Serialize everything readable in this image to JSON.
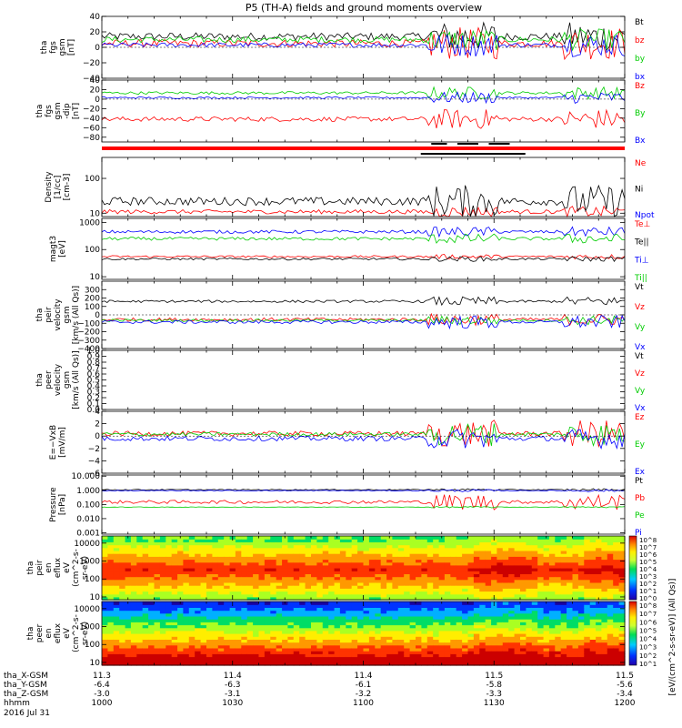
{
  "title": "P5 (TH-A) fields and ground moments overview",
  "date_label": "2016 Jul 31",
  "x_axis": {
    "tick_count": 7,
    "minor_ticks": 5,
    "row_labels": [
      "tha_X-GSM",
      "tha_Y-GSM",
      "tha_Z-GSM",
      "hhmm"
    ],
    "tick_values": [
      [
        "11.3",
        "11.4",
        "11.4",
        "11.5",
        "11.5"
      ],
      [
        "-6.4",
        "-6.3",
        "-6.1",
        "-5.8",
        "-5.6"
      ],
      [
        "-3.0",
        "-3.1",
        "-3.2",
        "-3.3",
        "-3.4"
      ],
      [
        "1000",
        "1030",
        "1100",
        "1130",
        "1200"
      ]
    ]
  },
  "colorbar": {
    "label": "[eV/(cm^2-s-sr-eV)] (All Qs)]",
    "spectrogram_1_ticks": [
      "10^8",
      "10^7",
      "10^6",
      "10^5",
      "10^4",
      "10^3",
      "10^2",
      "10^1",
      "10^0"
    ],
    "spectrogram_2_ticks": [
      "10^8",
      "10^7",
      "10^6",
      "10^5",
      "10^4",
      "10^3",
      "10^2",
      "10^1"
    ]
  },
  "chart_data": [
    {
      "type": "line",
      "panel_id": "fgs_gsm",
      "ylabel": [
        "tha",
        "fgs",
        "gsm",
        "[nT]"
      ],
      "ylim": [
        -40,
        40
      ],
      "yticks": [
        40,
        20,
        0,
        -20,
        -40
      ],
      "ytick_labels": [
        "40",
        "20",
        "0",
        "−20",
        "−40"
      ],
      "series": [
        {
          "name": "Bt",
          "color": "#000000",
          "base": 14,
          "noise": 5,
          "burst": 14
        },
        {
          "name": "bz",
          "color": "#ff0000",
          "base": 5,
          "noise": 5,
          "burst": 16
        },
        {
          "name": "by",
          "color": "#00cc00",
          "base": 10,
          "noise": 4,
          "burst": 10
        },
        {
          "name": "bx",
          "color": "#0000ff",
          "base": 3,
          "noise": 3,
          "burst": 12
        }
      ]
    },
    {
      "type": "line",
      "panel_id": "fgs_gsm_dip",
      "ylabel": [
        "tha",
        "fgs",
        "gsm",
        "-dip",
        "[nT]"
      ],
      "ylim": [
        -90,
        40
      ],
      "yticks": [
        40,
        20,
        0,
        -20,
        -40,
        -60,
        -80
      ],
      "ytick_labels": [
        "40",
        "20",
        "0",
        "−20",
        "−40",
        "−60",
        "−80"
      ],
      "series": [
        {
          "name": "Bz",
          "color": "#ff0000",
          "base": -42,
          "noise": 5,
          "burst": 16
        },
        {
          "name": "By",
          "color": "#00cc00",
          "base": 13,
          "noise": 3,
          "burst": 10
        },
        {
          "name": "Bx",
          "color": "#0000ff",
          "base": 3,
          "noise": 2,
          "burst": 10
        }
      ]
    },
    {
      "type": "line",
      "panel_id": "density",
      "log": true,
      "ylabel": [
        "Density",
        "[1/cc]",
        "[cm-3]"
      ],
      "ylim": [
        8,
        400
      ],
      "yticks": [
        100,
        10
      ],
      "ytick_labels": [
        "100",
        "10"
      ],
      "series": [
        {
          "name": "Ne",
          "color": "#ff0000",
          "base": 11,
          "noise": 0.06,
          "burst": 0.1
        },
        {
          "name": "Ni",
          "color": "#000000",
          "base": 22,
          "noise": 0.12,
          "burst": 0.35
        },
        {
          "name": "Npot",
          "color": "#0000ff",
          "base": 0,
          "noise": 0,
          "burst": 0
        }
      ]
    },
    {
      "type": "line",
      "panel_id": "temperature",
      "log": true,
      "ylabel": [
        "magt3",
        "[eV]"
      ],
      "ylim": [
        8,
        1400
      ],
      "yticks": [
        1000,
        100,
        10
      ],
      "ytick_labels": [
        "1000",
        "100",
        "10"
      ],
      "series": [
        {
          "name": "Te⊥",
          "color": "#ff0000",
          "base": 55,
          "noise": 0.04,
          "burst": 0.05
        },
        {
          "name": "Te||",
          "color": "#000000",
          "base": 45,
          "noise": 0.04,
          "burst": 0.05
        },
        {
          "name": "Ti⊥",
          "color": "#0000ff",
          "base": 450,
          "noise": 0.06,
          "burst": 0.12
        },
        {
          "name": "Ti||",
          "color": "#00cc00",
          "base": 250,
          "noise": 0.06,
          "burst": 0.12
        }
      ]
    },
    {
      "type": "line",
      "panel_id": "peir_velocity",
      "ylabel": [
        "tha",
        "peir",
        "velocity",
        "gsm",
        "[km/s (All Qs)]"
      ],
      "ylim": [
        -400,
        400
      ],
      "yticks": [
        300,
        200,
        100,
        0,
        -100,
        -200,
        -300,
        -400
      ],
      "ytick_labels": [
        "300",
        "200",
        "100",
        "0",
        "−100",
        "−200",
        "−300",
        "−400"
      ],
      "series": [
        {
          "name": "Vt",
          "color": "#000000",
          "base": 160,
          "noise": 15,
          "burst": 40
        },
        {
          "name": "Vz",
          "color": "#ff0000",
          "base": -55,
          "noise": 20,
          "burst": 50
        },
        {
          "name": "Vy",
          "color": "#00cc00",
          "base": -65,
          "noise": 15,
          "burst": 40
        },
        {
          "name": "Vx",
          "color": "#0000ff",
          "base": -85,
          "noise": 20,
          "burst": 60
        }
      ]
    },
    {
      "type": "line",
      "panel_id": "peer_velocity",
      "ylabel": [
        "tha",
        "peer",
        "velocity",
        "gsm",
        "[km/s (All Qs)]"
      ],
      "ylim": [
        0,
        1
      ],
      "yticks": [
        1.0,
        0.9,
        0.8,
        0.7,
        0.6,
        0.5,
        0.4,
        0.3,
        0.2,
        0.1,
        0.0
      ],
      "ytick_labels": [
        "1.0",
        "0.9",
        "0.8",
        "0.7",
        "0.6",
        "0.5",
        "0.4",
        "0.3",
        "0.2",
        "0.1",
        "0.0"
      ],
      "series": [
        {
          "name": "Vt",
          "color": "#000000",
          "base": 0,
          "noise": 0,
          "burst": 0
        },
        {
          "name": "Vz",
          "color": "#ff0000",
          "base": 0,
          "noise": 0,
          "burst": 0
        },
        {
          "name": "Vy",
          "color": "#00cc00",
          "base": 0,
          "noise": 0,
          "burst": 0
        },
        {
          "name": "Vx",
          "color": "#0000ff",
          "base": 0,
          "noise": 0,
          "burst": 0
        }
      ]
    },
    {
      "type": "line",
      "panel_id": "efield",
      "ylabel": [
        "E=−VxB",
        "[mV/m]"
      ],
      "ylim": [
        -6,
        4
      ],
      "yticks": [
        4,
        2,
        0,
        -2,
        -4,
        -6
      ],
      "ytick_labels": [
        "4",
        "2",
        "0",
        "−2",
        "−4",
        "−6"
      ],
      "series": [
        {
          "name": "Ez",
          "color": "#ff0000",
          "base": 0.4,
          "noise": 0.4,
          "burst": 1.8
        },
        {
          "name": "Ey",
          "color": "#00cc00",
          "base": 0.3,
          "noise": 0.3,
          "burst": 1.6
        },
        {
          "name": "Ex",
          "color": "#0000ff",
          "base": -0.4,
          "noise": 0.4,
          "burst": 1.2
        }
      ]
    },
    {
      "type": "line",
      "panel_id": "pressure",
      "log": true,
      "ylabel": [
        "Pressure",
        "[nPa]"
      ],
      "ylim": [
        0.0008,
        12
      ],
      "yticks": [
        10,
        1,
        0.1,
        0.01,
        0.001
      ],
      "ytick_labels": [
        "10.000",
        "1.000",
        "0.100",
        "0.010",
        "0.001"
      ],
      "series": [
        {
          "name": "Pt",
          "color": "#000000",
          "base": 1.1,
          "noise": 0.03,
          "burst": 0.05
        },
        {
          "name": "Pb",
          "color": "#ff0000",
          "base": 0.15,
          "noise": 0.12,
          "burst": 0.45
        },
        {
          "name": "Pe",
          "color": "#00cc00",
          "base": 0.065,
          "noise": 0.02,
          "burst": 0.03
        },
        {
          "name": "Pi",
          "color": "#0000ff",
          "base": 0.95,
          "noise": 0.03,
          "burst": 0.05
        }
      ]
    },
    {
      "type": "heatmap",
      "panel_id": "peir_eflux",
      "log": true,
      "ylabel": [
        "tha",
        "peir",
        "en",
        "eflux",
        "eV",
        "(cm^2-s-",
        "sr-eV)"
      ],
      "ylim": [
        7,
        25000
      ],
      "yticks": [
        10000,
        1000,
        100,
        10
      ],
      "ytick_labels": [
        "10000",
        "1000",
        "100",
        "10"
      ]
    },
    {
      "type": "heatmap",
      "panel_id": "peer_eflux",
      "log": true,
      "ylabel": [
        "tha",
        "peer",
        "en",
        "eflux",
        "eV",
        "(cm^2-s-",
        "sr-eV)"
      ],
      "ylim": [
        7,
        25000
      ],
      "yticks": [
        10000,
        1000,
        100,
        10
      ],
      "ytick_labels": [
        "10000",
        "1000",
        "100",
        "10"
      ]
    }
  ]
}
